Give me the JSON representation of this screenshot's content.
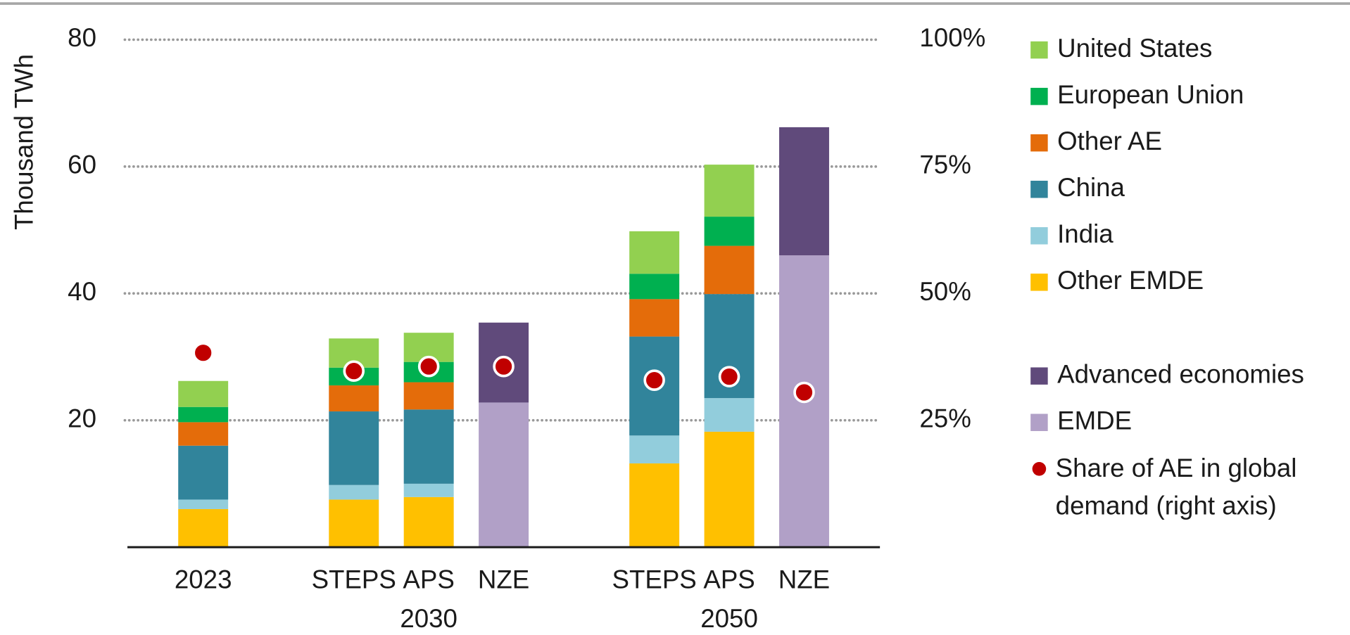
{
  "chart_data": {
    "type": "bar",
    "stacked": true,
    "y_label": "Thousand TWh",
    "categories": [
      "2023",
      "STEPS",
      "APS",
      "NZE",
      "STEPS",
      "APS",
      "NZE"
    ],
    "groups": [
      null,
      "2030",
      "2030",
      "2030",
      "2050",
      "2050",
      "2050"
    ],
    "ylim": [
      0,
      80
    ],
    "yticks": [
      20,
      40,
      60,
      80
    ],
    "y2lim": [
      0,
      100
    ],
    "y2ticks": [
      {
        "value": 25,
        "label": "25%"
      },
      {
        "value": 50,
        "label": "50%"
      },
      {
        "value": 75,
        "label": "75%"
      },
      {
        "value": 100,
        "label": "100%"
      }
    ],
    "grid": true,
    "legend": "right",
    "series": [
      {
        "name": "Other EMDE",
        "color": "#ffc000",
        "values": [
          6.0,
          7.5,
          7.9,
          null,
          13.2,
          18.2,
          null
        ]
      },
      {
        "name": "India",
        "color": "#92cddc",
        "values": [
          1.5,
          2.3,
          2.1,
          null,
          4.4,
          5.3,
          null
        ]
      },
      {
        "name": "China",
        "color": "#31849b",
        "values": [
          8.5,
          11.6,
          11.7,
          null,
          15.6,
          16.4,
          null
        ]
      },
      {
        "name": "Other AE",
        "color": "#e46c0a",
        "values": [
          3.7,
          4.1,
          4.3,
          null,
          5.9,
          7.6,
          null
        ]
      },
      {
        "name": "European Union",
        "color": "#00b050",
        "values": [
          2.4,
          2.8,
          3.2,
          null,
          4.0,
          4.6,
          null
        ]
      },
      {
        "name": "United States",
        "color": "#92d050",
        "values": [
          4.1,
          4.6,
          4.6,
          null,
          6.7,
          8.2,
          null
        ]
      },
      {
        "name": "EMDE",
        "color": "#b1a0c7",
        "values": [
          null,
          null,
          null,
          22.8,
          null,
          null,
          46.0
        ]
      },
      {
        "name": "Advanced economies",
        "color": "#604a7b",
        "values": [
          null,
          null,
          null,
          12.6,
          null,
          null,
          20.2
        ]
      },
      {
        "name": "Share of AE in global demand (right axis)",
        "color": "#c00000",
        "type": "scatter",
        "axis": "y2",
        "values": [
          38.3,
          34.7,
          35.6,
          35.6,
          32.9,
          33.6,
          30.5
        ]
      }
    ]
  }
}
